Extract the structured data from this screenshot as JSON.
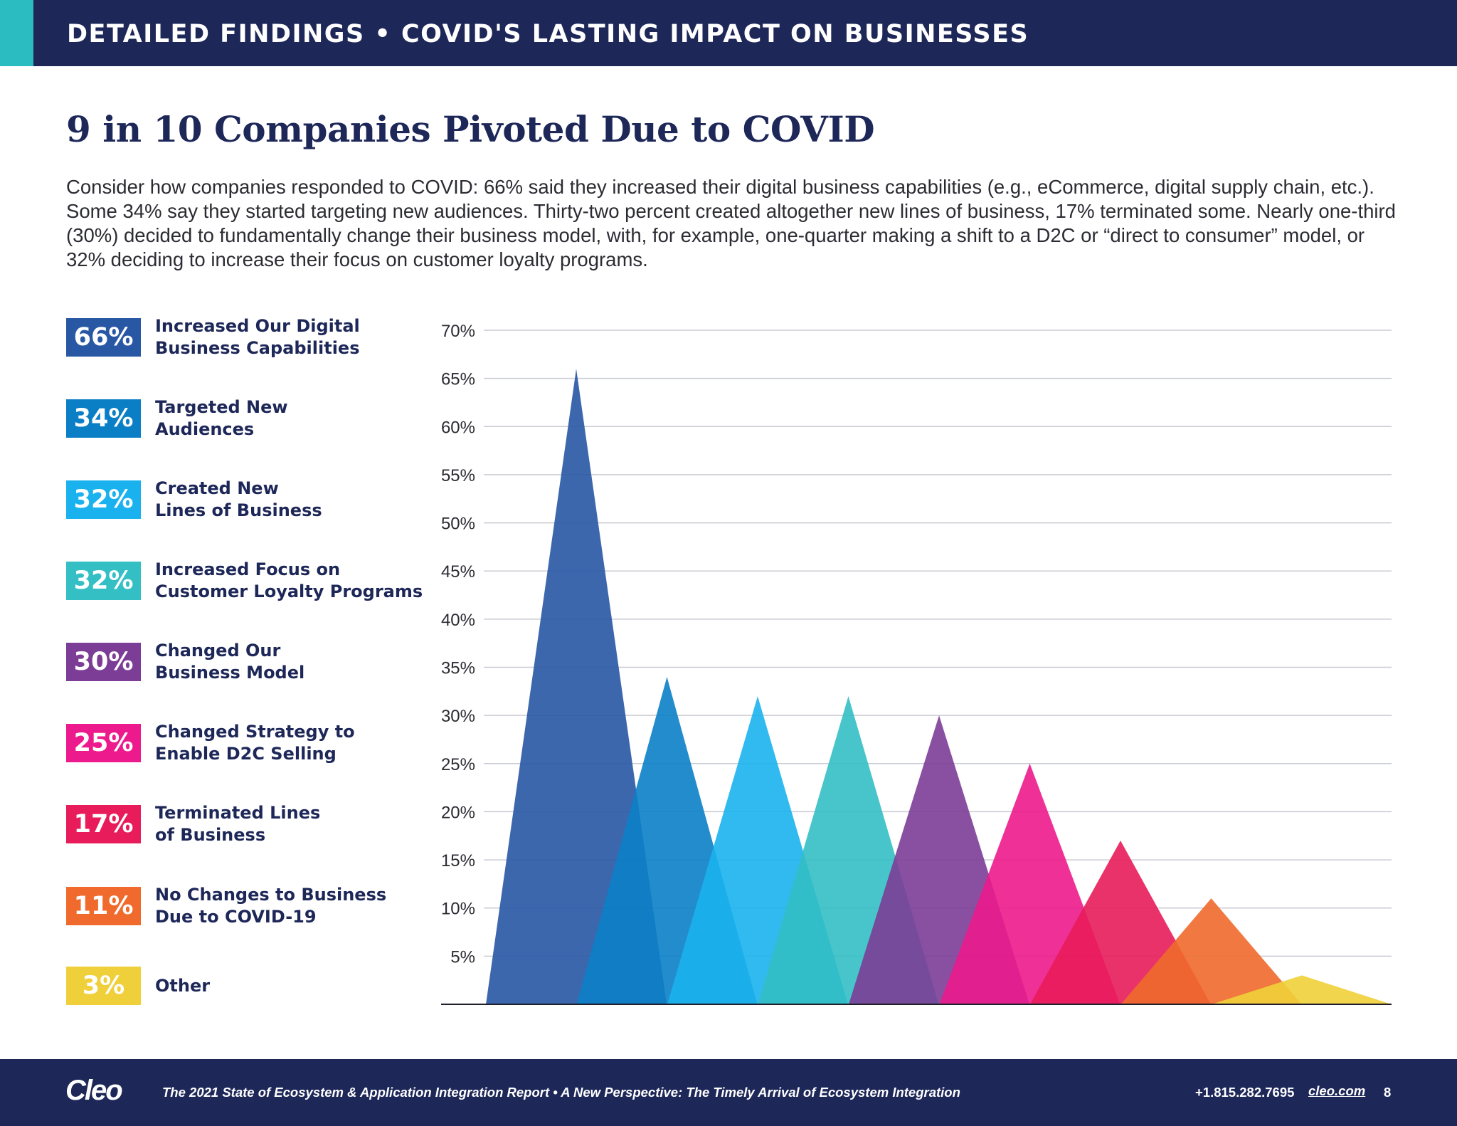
{
  "header": {
    "title": "DETAILED FINDINGS  •  COVID'S LASTING IMPACT ON BUSINESSES"
  },
  "headline": "9 in 10 Companies Pivoted Due to COVID",
  "intro": "Consider how companies responded to COVID: 66% said they increased their digital business capabilities (e.g., eCommerce, digital supply chain, etc.). Some 34% say they started targeting new audiences. Thirty-two percent created altogether new lines of business, 17% terminated some. Nearly one-third (30%) decided to fundamentally change their business model, with, for example, one-quarter making a shift to a D2C or “direct to consumer” model, or 32% deciding to increase their focus on customer loyalty programs.",
  "legend": [
    {
      "value": "66%",
      "line1": "Increased Our Digital",
      "line2": "Business Capabilities",
      "color": "#2857a4"
    },
    {
      "value": "34%",
      "line1": "Targeted New",
      "line2": "Audiences",
      "color": "#0b7fc6"
    },
    {
      "value": "32%",
      "line1": "Created New",
      "line2": "Lines of Business",
      "color": "#1ab2ee"
    },
    {
      "value": "32%",
      "line1": "Increased Focus on",
      "line2": "Customer Loyalty Programs",
      "color": "#33bfc4"
    },
    {
      "value": "30%",
      "line1": "Changed Our",
      "line2": "Business Model",
      "color": "#7c3d97"
    },
    {
      "value": "25%",
      "line1": "Changed Strategy to",
      "line2": "Enable D2C Selling",
      "color": "#ec1a8c"
    },
    {
      "value": "17%",
      "line1": "Terminated Lines",
      "line2": "of Business",
      "color": "#e81c5a"
    },
    {
      "value": "11%",
      "line1": "No Changes to Business",
      "line2": "Due to COVID-19",
      "color": "#ef6a2c"
    },
    {
      "value": "3%",
      "line1": "Other",
      "line2": "",
      "color": "#f0d03a"
    }
  ],
  "chart_data": {
    "type": "area",
    "title": "",
    "xlabel": "",
    "ylabel": "",
    "ylim": [
      0,
      70
    ],
    "yticks": [
      5,
      10,
      15,
      20,
      25,
      30,
      35,
      40,
      45,
      50,
      55,
      60,
      65,
      70
    ],
    "ytick_labels": [
      "5%",
      "10%",
      "15%",
      "20%",
      "25%",
      "30%",
      "35%",
      "40%",
      "45%",
      "50%",
      "55%",
      "60%",
      "65%",
      "70%"
    ],
    "grid": true,
    "categories": [
      "Increased Our Digital Business Capabilities",
      "Targeted New Audiences",
      "Created New Lines of Business",
      "Increased Focus on Customer Loyalty Programs",
      "Changed Our Business Model",
      "Changed Strategy to Enable D2C Selling",
      "Terminated Lines of Business",
      "No Changes to Business Due to COVID-19",
      "Other"
    ],
    "values": [
      66,
      34,
      32,
      32,
      30,
      25,
      17,
      11,
      3
    ],
    "colors": [
      "#2857a4",
      "#0b7fc6",
      "#1ab2ee",
      "#33bfc4",
      "#7c3d97",
      "#ec1a8c",
      "#e81c5a",
      "#ef6a2c",
      "#f0d03a"
    ]
  },
  "footer": {
    "logo": "Cleo",
    "report": "The 2021 State of Ecosystem & Application Integration Report  •  A New Perspective: The Timely Arrival of Ecosystem Integration",
    "phone": "+1.815.282.7695",
    "website": "cleo.com",
    "page": "8"
  }
}
